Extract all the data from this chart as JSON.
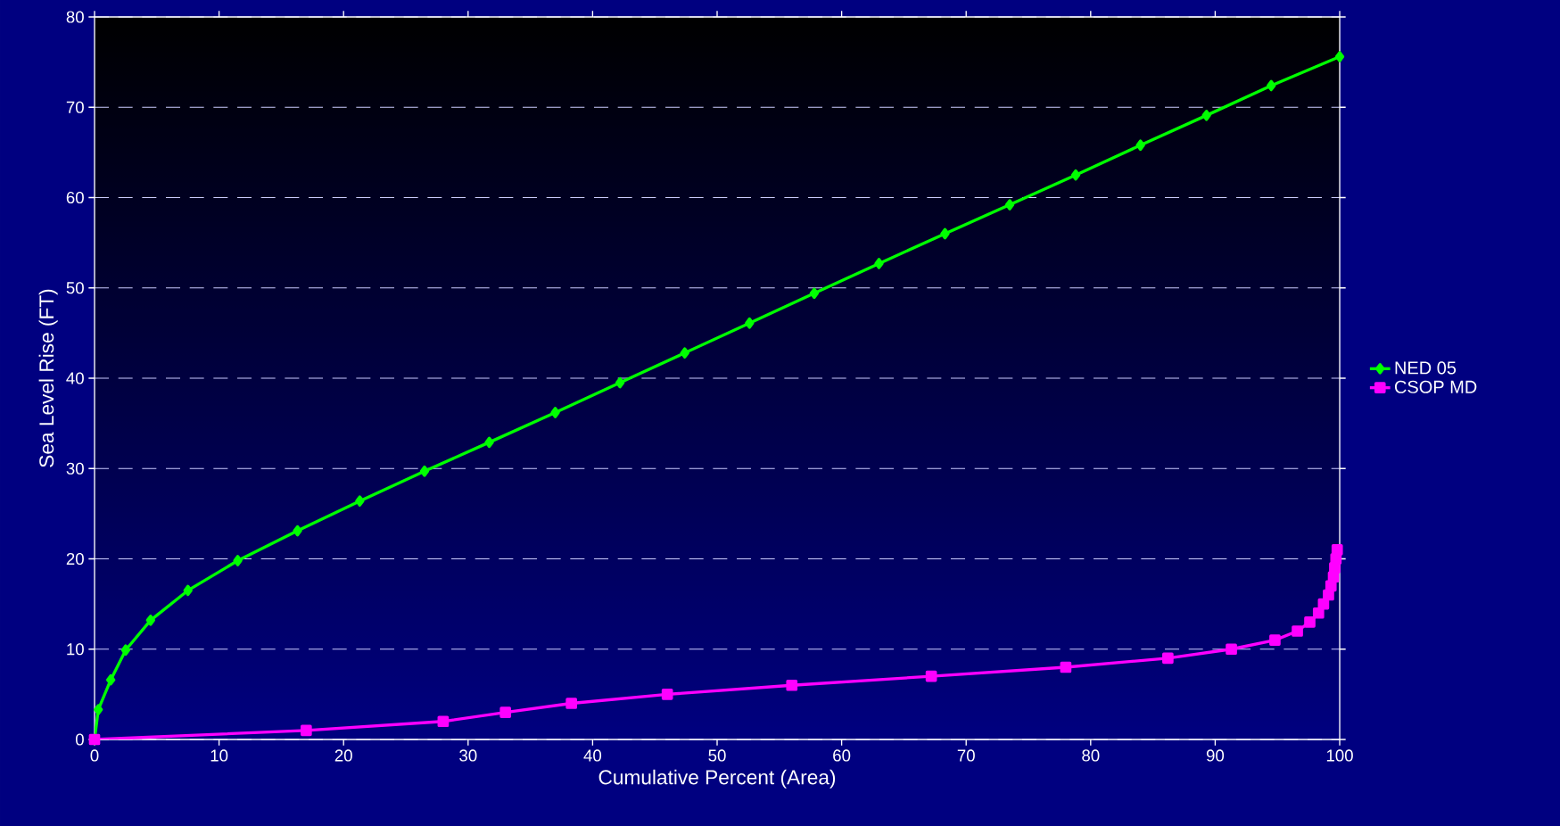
{
  "chart_data": {
    "type": "line",
    "xlabel": "Cumulative Percent (Area)",
    "ylabel": "Sea Level Rise (FT)",
    "xlim": [
      0,
      100
    ],
    "xticks": [
      0,
      10,
      20,
      30,
      40,
      50,
      60,
      70,
      80,
      90,
      100
    ],
    "ylim": [
      0,
      80
    ],
    "yticks": [
      0,
      10,
      20,
      30,
      40,
      50,
      60,
      70,
      80
    ],
    "grid": "y",
    "legend": "right",
    "series": [
      {
        "name": "NED 05",
        "color": "#00ff00",
        "marker": "diamond",
        "x": [
          0,
          0.3,
          1.3,
          2.5,
          4.5,
          7.5,
          11.5,
          16.3,
          21.3,
          26.5,
          31.7,
          37,
          42.2,
          47.4,
          52.6,
          57.8,
          63,
          68.3,
          73.5,
          78.8,
          84,
          89.3,
          94.5,
          100
        ],
        "values": [
          0,
          3.3,
          6.6,
          9.9,
          13.2,
          16.5,
          19.8,
          23.1,
          26.4,
          29.7,
          32.9,
          36.2,
          39.5,
          42.8,
          46.1,
          49.4,
          52.7,
          56,
          59.2,
          62.5,
          65.8,
          69.1,
          72.4,
          75.6
        ]
      },
      {
        "name": "CSOP MD",
        "color": "#ff00ff",
        "marker": "square",
        "x": [
          0,
          17,
          28,
          33,
          38.3,
          46,
          56,
          67.2,
          78,
          86.2,
          91.3,
          94.8,
          96.6,
          97.6,
          98.3,
          98.7,
          99.1,
          99.3,
          99.5,
          99.6,
          99.7,
          99.8
        ],
        "values": [
          0,
          1,
          2,
          3,
          4,
          5,
          6,
          7,
          8,
          9,
          10,
          11,
          12,
          13,
          14,
          15,
          16,
          17,
          18,
          19,
          20,
          21
        ]
      }
    ]
  }
}
